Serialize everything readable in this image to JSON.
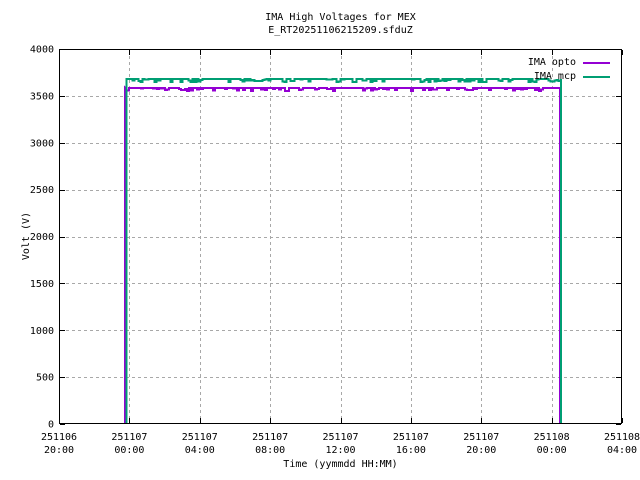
{
  "chart_data": {
    "type": "line",
    "title": "IMA High Voltages for MEX",
    "subtitle": "E_RT20251106215209.sfduZ",
    "xlabel": "Time (yymmdd HH:MM)",
    "ylabel": "Volt (V)",
    "ylim": [
      0,
      4000
    ],
    "y_ticks": [
      0,
      500,
      1000,
      1500,
      2000,
      2500,
      3000,
      3500,
      4000
    ],
    "x_range_hours": [
      0,
      32
    ],
    "x_ticks": [
      {
        "hours": 0,
        "date": "251106",
        "time": "20:00"
      },
      {
        "hours": 4,
        "date": "251107",
        "time": "00:00"
      },
      {
        "hours": 8,
        "date": "251107",
        "time": "04:00"
      },
      {
        "hours": 12,
        "date": "251107",
        "time": "08:00"
      },
      {
        "hours": 16,
        "date": "251107",
        "time": "12:00"
      },
      {
        "hours": 20,
        "date": "251107",
        "time": "16:00"
      },
      {
        "hours": 24,
        "date": "251107",
        "time": "20:00"
      },
      {
        "hours": 28,
        "date": "251108",
        "time": "00:00"
      },
      {
        "hours": 32,
        "date": "251108",
        "time": "04:00"
      }
    ],
    "grid": true,
    "legend_position": "top-right-inside",
    "series": [
      {
        "name": "IMA opto",
        "color": "#9400d3",
        "plateau_v": 3585,
        "on_hours": 3.75,
        "off_hours": 28.48,
        "noise_v": 30,
        "points": [
          [
            3.75,
            0
          ],
          [
            3.75,
            3585
          ],
          [
            28.48,
            3585
          ],
          [
            28.48,
            0
          ]
        ]
      },
      {
        "name": "IMA mcp",
        "color": "#009e73",
        "plateau_v": 3680,
        "on_hours": 3.84,
        "off_hours": 28.54,
        "noise_v": 30,
        "points": [
          [
            3.84,
            0
          ],
          [
            3.84,
            3680
          ],
          [
            28.54,
            3680
          ],
          [
            28.54,
            0
          ]
        ]
      }
    ],
    "colors": {
      "background": "#ffffff",
      "border": "#000000",
      "grid": "#a8a8a8",
      "text": "#000000"
    }
  }
}
